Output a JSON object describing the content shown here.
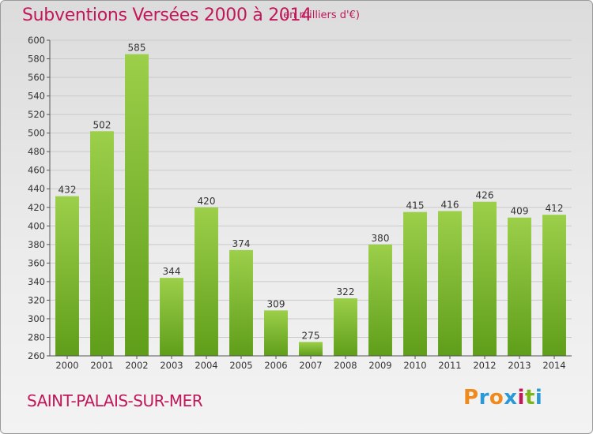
{
  "header": {
    "title": "Subventions Versées 2000 à 2014",
    "subtitle": "(en milliers d'€)"
  },
  "footer": {
    "commune": "SAINT-PALAIS-SUR-MER",
    "logo_text": "Proxiti"
  },
  "colors": {
    "title": "#c0185a",
    "bar_light": "#9ccf4a",
    "bar_dark": "#5f9e1a",
    "logo": [
      "#f08a1c",
      "#2a9ad6",
      "#f08a1c",
      "#2a9ad6",
      "#c0185a",
      "#7ab51d",
      "#2a9ad6"
    ]
  },
  "chart_data": {
    "type": "bar",
    "categories": [
      "2000",
      "2001",
      "2002",
      "2003",
      "2004",
      "2005",
      "2006",
      "2007",
      "2008",
      "2009",
      "2010",
      "2011",
      "2012",
      "2013",
      "2014"
    ],
    "values": [
      432,
      502,
      585,
      344,
      420,
      374,
      309,
      275,
      322,
      380,
      415,
      416,
      426,
      409,
      412
    ],
    "title": "Subventions Versées 2000 à 2014",
    "ylim": [
      260,
      600
    ],
    "yticks": [
      260,
      280,
      300,
      320,
      340,
      360,
      380,
      400,
      420,
      440,
      460,
      480,
      500,
      520,
      540,
      560,
      580,
      600
    ],
    "grid": true
  }
}
